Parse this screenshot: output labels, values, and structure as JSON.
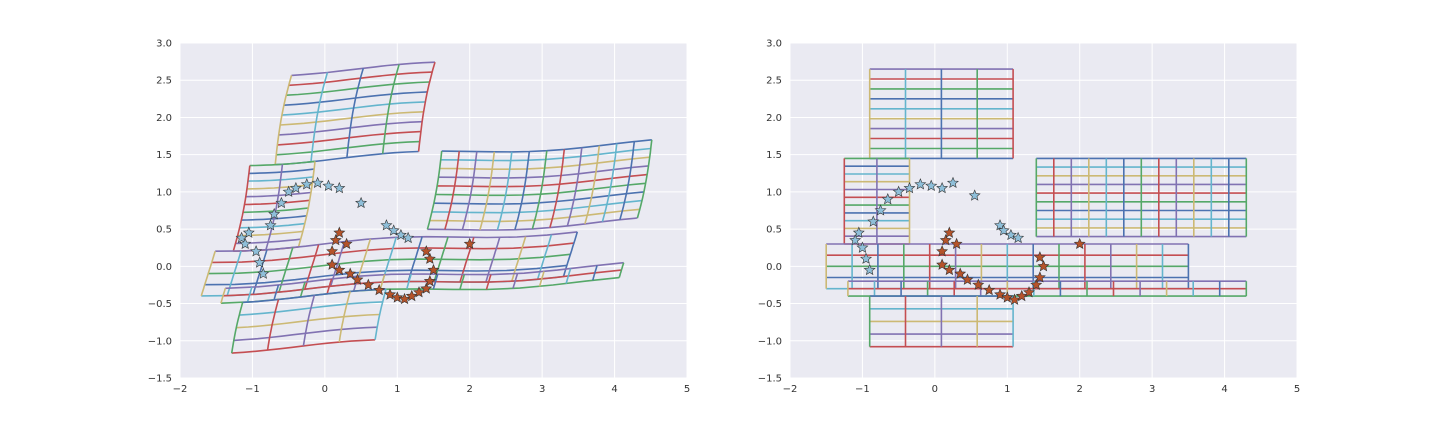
{
  "chart_data": [
    {
      "type": "scatter",
      "xlim": [
        -2,
        5
      ],
      "ylim": [
        -1.5,
        3.0
      ],
      "xticks": [
        "−2",
        "−1",
        "0",
        "1",
        "2",
        "3",
        "4",
        "5"
      ],
      "yticks": [
        "−1.5",
        "−1.0",
        "−0.5",
        "0.0",
        "0.5",
        "1.0",
        "1.5",
        "2.0",
        "2.5",
        "3.0"
      ],
      "grid": true,
      "grid_style": "warped",
      "series": [
        {
          "marker": "star",
          "color": "#8fbfd9",
          "points": [
            [
              -1.05,
              0.45
            ],
            [
              -1.15,
              0.38
            ],
            [
              -1.1,
              0.3
            ],
            [
              -0.95,
              0.2
            ],
            [
              -0.9,
              0.05
            ],
            [
              -0.85,
              -0.1
            ],
            [
              -0.75,
              0.55
            ],
            [
              -0.7,
              0.7
            ],
            [
              -0.6,
              0.85
            ],
            [
              -0.5,
              1.0
            ],
            [
              -0.4,
              1.05
            ],
            [
              -0.25,
              1.1
            ],
            [
              -0.1,
              1.12
            ],
            [
              0.05,
              1.08
            ],
            [
              0.2,
              1.05
            ],
            [
              0.5,
              0.85
            ],
            [
              0.85,
              0.55
            ],
            [
              0.95,
              0.48
            ],
            [
              1.05,
              0.42
            ],
            [
              1.15,
              0.38
            ]
          ]
        },
        {
          "marker": "star",
          "color": "#b5532a",
          "points": [
            [
              0.1,
              0.2
            ],
            [
              0.15,
              0.35
            ],
            [
              0.2,
              0.45
            ],
            [
              0.3,
              0.3
            ],
            [
              0.1,
              0.02
            ],
            [
              0.2,
              -0.05
            ],
            [
              0.35,
              -0.1
            ],
            [
              0.45,
              -0.18
            ],
            [
              0.6,
              -0.25
            ],
            [
              0.75,
              -0.32
            ],
            [
              0.9,
              -0.38
            ],
            [
              1.0,
              -0.42
            ],
            [
              1.1,
              -0.44
            ],
            [
              1.2,
              -0.4
            ],
            [
              1.3,
              -0.35
            ],
            [
              1.4,
              -0.3
            ],
            [
              1.45,
              -0.2
            ],
            [
              1.5,
              -0.05
            ],
            [
              1.45,
              0.1
            ],
            [
              1.4,
              0.2
            ],
            [
              2.0,
              0.3
            ]
          ]
        }
      ]
    },
    {
      "type": "scatter",
      "xlim": [
        -2,
        5
      ],
      "ylim": [
        -1.5,
        3.0
      ],
      "xticks": [
        "−2",
        "−1",
        "0",
        "1",
        "2",
        "3",
        "4",
        "5"
      ],
      "yticks": [
        "−1.5",
        "−1.0",
        "−0.5",
        "0.0",
        "0.5",
        "1.0",
        "1.5",
        "2.0",
        "2.5",
        "3.0"
      ],
      "grid": true,
      "grid_style": "rectangular",
      "series": [
        {
          "marker": "star",
          "color": "#8fbfd9",
          "points": [
            [
              -1.05,
              0.45
            ],
            [
              -1.1,
              0.35
            ],
            [
              -1.0,
              0.25
            ],
            [
              -0.95,
              0.1
            ],
            [
              -0.9,
              -0.05
            ],
            [
              -0.85,
              0.6
            ],
            [
              -0.75,
              0.75
            ],
            [
              -0.65,
              0.9
            ],
            [
              -0.5,
              1.0
            ],
            [
              -0.35,
              1.05
            ],
            [
              -0.2,
              1.1
            ],
            [
              -0.05,
              1.08
            ],
            [
              0.1,
              1.05
            ],
            [
              0.25,
              1.12
            ],
            [
              0.55,
              0.95
            ],
            [
              0.9,
              0.55
            ],
            [
              0.95,
              0.48
            ],
            [
              1.05,
              0.42
            ],
            [
              1.15,
              0.38
            ]
          ]
        },
        {
          "marker": "star",
          "color": "#b5532a",
          "points": [
            [
              0.1,
              0.2
            ],
            [
              0.15,
              0.35
            ],
            [
              0.2,
              0.45
            ],
            [
              0.3,
              0.3
            ],
            [
              0.1,
              0.02
            ],
            [
              0.2,
              -0.05
            ],
            [
              0.35,
              -0.1
            ],
            [
              0.45,
              -0.18
            ],
            [
              0.6,
              -0.25
            ],
            [
              0.75,
              -0.32
            ],
            [
              0.9,
              -0.38
            ],
            [
              1.0,
              -0.42
            ],
            [
              1.1,
              -0.45
            ],
            [
              1.2,
              -0.4
            ],
            [
              1.3,
              -0.35
            ],
            [
              1.4,
              -0.25
            ],
            [
              1.45,
              -0.15
            ],
            [
              1.5,
              0.0
            ],
            [
              1.45,
              0.12
            ],
            [
              2.0,
              0.3
            ]
          ]
        }
      ]
    }
  ],
  "styles": {
    "plot_background": "#eaeaf2",
    "gridline_color": "#ffffff",
    "grid_palette": [
      "#4c72b0",
      "#55a868",
      "#c44e52",
      "#8172b2",
      "#ccb974",
      "#64b5cd"
    ]
  }
}
